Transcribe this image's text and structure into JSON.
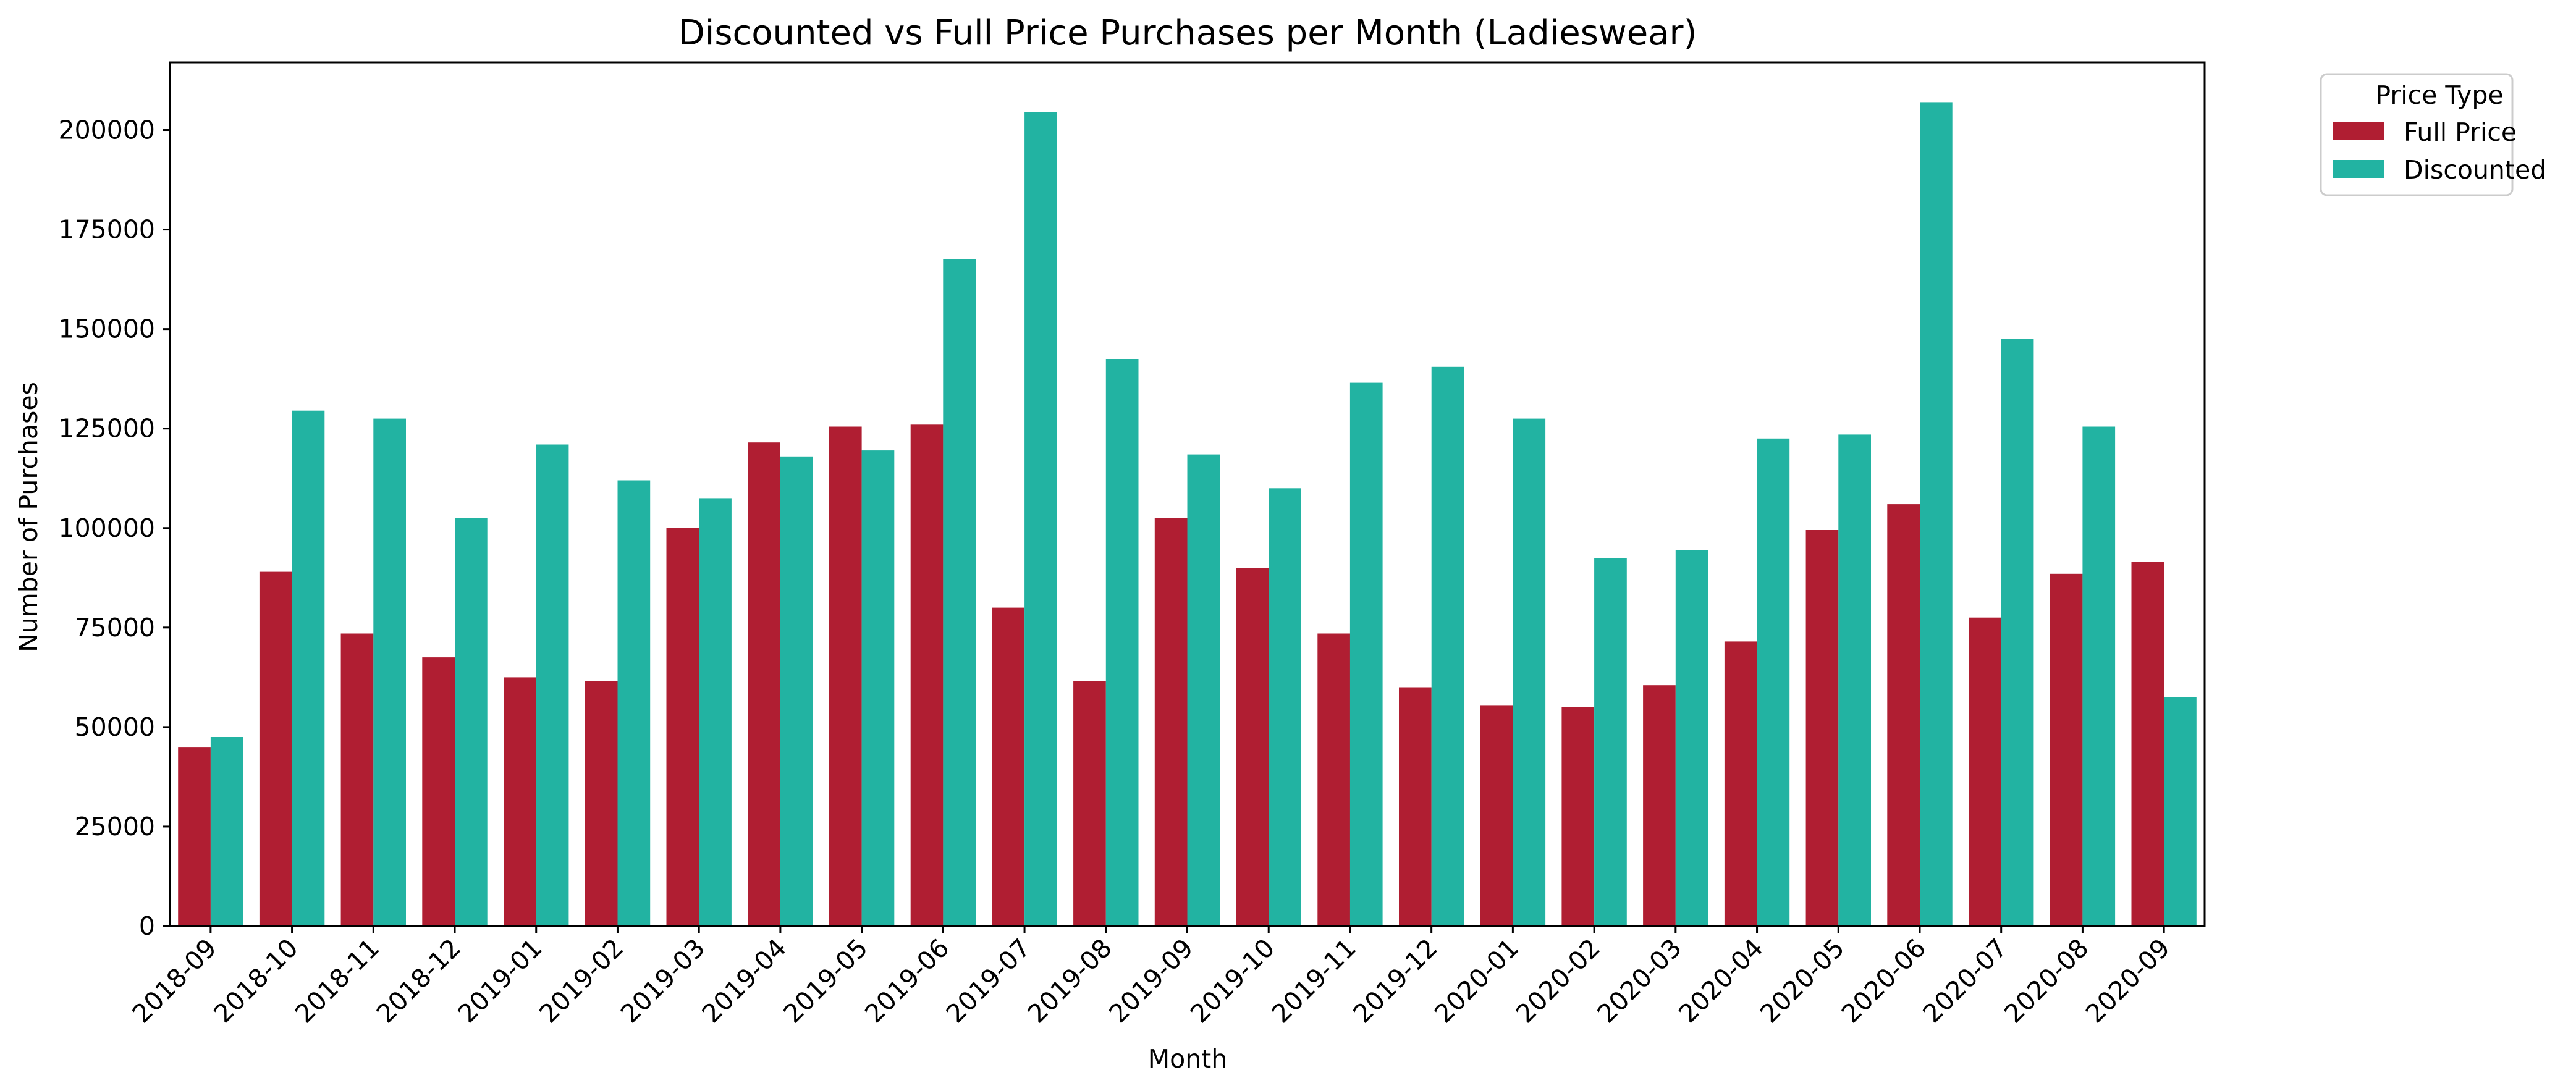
{
  "chart_data": {
    "type": "bar",
    "title": "Discounted vs Full Price Purchases per Month (Ladieswear)",
    "xlabel": "Month",
    "ylabel": "Number of Purchases",
    "ylim": [
      0,
      217000
    ],
    "yticks": [
      0,
      25000,
      50000,
      75000,
      100000,
      125000,
      150000,
      175000,
      200000
    ],
    "grid": false,
    "legend": {
      "title": "Price Type",
      "placement": "outside top-right"
    },
    "categories": [
      "2018-09",
      "2018-10",
      "2018-11",
      "2018-12",
      "2019-01",
      "2019-02",
      "2019-03",
      "2019-04",
      "2019-05",
      "2019-06",
      "2019-07",
      "2019-08",
      "2019-09",
      "2019-10",
      "2019-11",
      "2019-12",
      "2020-01",
      "2020-02",
      "2020-03",
      "2020-04",
      "2020-05",
      "2020-06",
      "2020-07",
      "2020-08",
      "2020-09"
    ],
    "series": [
      {
        "name": "Full Price",
        "color": "#b01e32",
        "values": [
          45000,
          89000,
          73500,
          67500,
          62500,
          61500,
          100000,
          121500,
          125500,
          126000,
          80000,
          61500,
          102500,
          90000,
          73500,
          60000,
          55500,
          55000,
          60500,
          71500,
          99500,
          106000,
          77500,
          88500,
          91500
        ]
      },
      {
        "name": "Discounted",
        "color": "#22b3a2",
        "values": [
          47500,
          129500,
          127500,
          102500,
          121000,
          112000,
          107500,
          118000,
          119500,
          167500,
          204500,
          142500,
          118500,
          110000,
          136500,
          140500,
          127500,
          92500,
          94500,
          122500,
          123500,
          207000,
          147500,
          125500,
          57500
        ]
      }
    ]
  }
}
